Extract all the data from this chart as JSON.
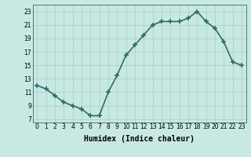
{
  "x": [
    0,
    1,
    2,
    3,
    4,
    5,
    6,
    7,
    8,
    9,
    10,
    11,
    12,
    13,
    14,
    15,
    16,
    17,
    18,
    19,
    20,
    21,
    22,
    23
  ],
  "y": [
    12.0,
    11.5,
    10.5,
    9.5,
    9.0,
    8.5,
    7.5,
    7.5,
    11.0,
    13.5,
    16.5,
    18.0,
    19.5,
    21.0,
    21.5,
    21.5,
    21.5,
    22.0,
    23.0,
    21.5,
    20.5,
    18.5,
    15.5,
    15.0
  ],
  "line_color": "#2e6e62",
  "marker": "+",
  "marker_size": 4,
  "marker_linewidth": 1.2,
  "bg_color": "#c8e8e4",
  "grid_color": "#b0d0cc",
  "xlabel": "Humidex (Indice chaleur)",
  "xlim": [
    -0.5,
    23.5
  ],
  "ylim": [
    6.5,
    24.0
  ],
  "yticks": [
    7,
    9,
    11,
    13,
    15,
    17,
    19,
    21,
    23
  ],
  "xticks": [
    0,
    1,
    2,
    3,
    4,
    5,
    6,
    7,
    8,
    9,
    10,
    11,
    12,
    13,
    14,
    15,
    16,
    17,
    18,
    19,
    20,
    21,
    22,
    23
  ],
  "tick_fontsize": 5.5,
  "xlabel_fontsize": 7,
  "line_width": 1.2
}
